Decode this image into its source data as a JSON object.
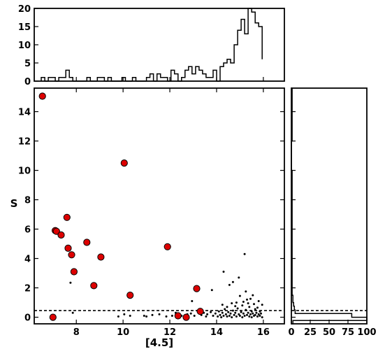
{
  "chart_data": [
    {
      "type": "histogram",
      "panel": "top",
      "orientation": "vertical",
      "bin_edges": [
        6.5,
        6.65,
        6.8,
        6.95,
        7.1,
        7.25,
        7.4,
        7.55,
        7.7,
        7.85,
        8.0,
        8.15,
        8.3,
        8.45,
        8.6,
        8.75,
        8.9,
        9.05,
        9.2,
        9.35,
        9.5,
        9.65,
        9.8,
        9.95,
        10.1,
        10.25,
        10.4,
        10.55,
        10.7,
        10.85,
        11.0,
        11.15,
        11.3,
        11.45,
        11.6,
        11.75,
        11.9,
        12.05,
        12.2,
        12.35,
        12.5,
        12.65,
        12.8,
        12.95,
        13.1,
        13.25,
        13.4,
        13.55,
        13.7,
        13.85,
        14.0,
        14.15,
        14.3,
        14.45,
        14.6,
        14.75,
        14.9,
        15.05,
        15.2,
        15.35,
        15.5,
        15.65,
        15.8,
        15.95
      ],
      "counts": [
        1,
        0,
        1,
        1,
        0,
        1,
        1,
        3,
        1,
        0,
        0,
        0,
        0,
        1,
        0,
        0,
        1,
        1,
        0,
        1,
        0,
        0,
        0,
        1,
        0,
        0,
        1,
        0,
        0,
        0,
        1,
        2,
        0,
        2,
        1,
        1,
        0,
        3,
        2,
        0,
        1,
        3,
        4,
        2,
        4,
        3,
        2,
        1,
        1,
        3,
        0,
        4,
        5,
        6,
        5,
        10,
        14,
        17,
        13,
        20,
        19,
        16,
        15,
        6
      ],
      "xlim": [
        6.2,
        16.9
      ],
      "ylim": [
        0,
        20
      ],
      "yticks": [
        "0",
        "5",
        "10",
        "15",
        "20"
      ]
    },
    {
      "type": "scatter",
      "panel": "main",
      "xlabel": "[4.5]",
      "ylabel": "S",
      "xlim": [
        6.2,
        16.9
      ],
      "ylim": [
        -0.45,
        15.6
      ],
      "xticks": [
        "8",
        "10",
        "12",
        "14",
        "16"
      ],
      "yticks": [
        "0",
        "2",
        "4",
        "6",
        "8",
        "10",
        "12",
        "14"
      ],
      "threshold_line": {
        "y": 0.45,
        "style": "dashed"
      },
      "highlighted_points": {
        "color": "#dd0000",
        "points": [
          [
            6.55,
            15.05
          ],
          [
            7.0,
            0.0
          ],
          [
            7.1,
            5.9
          ],
          [
            7.15,
            5.85
          ],
          [
            7.35,
            5.6
          ],
          [
            7.6,
            6.8
          ],
          [
            7.65,
            4.7
          ],
          [
            7.8,
            4.25
          ],
          [
            7.9,
            3.1
          ],
          [
            8.45,
            5.1
          ],
          [
            8.75,
            2.15
          ],
          [
            9.05,
            4.1
          ],
          [
            10.05,
            10.5
          ],
          [
            10.3,
            1.5
          ],
          [
            11.9,
            4.8
          ],
          [
            12.35,
            0.1
          ],
          [
            12.7,
            0.0
          ],
          [
            13.15,
            1.95
          ],
          [
            13.3,
            0.4
          ]
        ]
      },
      "field_points": {
        "color": "#000000",
        "points": [
          [
            7.75,
            2.35
          ],
          [
            7.85,
            0.3
          ],
          [
            9.8,
            0.05
          ],
          [
            10.05,
            0.2
          ],
          [
            10.3,
            0.1
          ],
          [
            10.9,
            0.1
          ],
          [
            11.0,
            0.05
          ],
          [
            11.25,
            0.15
          ],
          [
            11.55,
            0.2
          ],
          [
            11.85,
            0.05
          ],
          [
            12.1,
            0.1
          ],
          [
            12.25,
            0.3
          ],
          [
            12.5,
            0.1
          ],
          [
            12.75,
            0.2
          ],
          [
            12.9,
            0.25
          ],
          [
            12.95,
            1.1
          ],
          [
            13.05,
            0.1
          ],
          [
            13.2,
            0.4
          ],
          [
            13.35,
            0.15
          ],
          [
            13.45,
            0.3
          ],
          [
            13.55,
            0.05
          ],
          [
            13.6,
            0.2
          ],
          [
            13.75,
            0.35
          ],
          [
            13.8,
            1.85
          ],
          [
            13.85,
            0.1
          ],
          [
            13.95,
            0.25
          ],
          [
            14.05,
            0.05
          ],
          [
            14.1,
            0.4
          ],
          [
            14.15,
            0.15
          ],
          [
            14.2,
            0.0
          ],
          [
            14.25,
            0.3
          ],
          [
            14.3,
            3.1
          ],
          [
            14.3,
            0.1
          ],
          [
            14.35,
            0.55
          ],
          [
            14.4,
            0.2
          ],
          [
            14.45,
            0.05
          ],
          [
            14.5,
            0.35
          ],
          [
            14.55,
            2.2
          ],
          [
            14.55,
            0.1
          ],
          [
            14.6,
            0.25
          ],
          [
            14.65,
            0.0
          ],
          [
            14.7,
            0.45
          ],
          [
            14.7,
            2.4
          ],
          [
            14.75,
            0.15
          ],
          [
            14.8,
            0.3
          ],
          [
            14.85,
            0.05
          ],
          [
            14.9,
            0.6
          ],
          [
            14.95,
            0.2
          ],
          [
            14.95,
            2.7
          ],
          [
            15.0,
            0.1
          ],
          [
            15.05,
            0.35
          ],
          [
            15.1,
            0.0
          ],
          [
            15.1,
            0.8
          ],
          [
            15.15,
            0.25
          ],
          [
            15.2,
            4.3
          ],
          [
            15.2,
            0.1
          ],
          [
            15.25,
            0.5
          ],
          [
            15.3,
            0.15
          ],
          [
            15.3,
            1.2
          ],
          [
            15.35,
            0.3
          ],
          [
            15.4,
            0.05
          ],
          [
            15.4,
            0.7
          ],
          [
            15.45,
            0.2
          ],
          [
            15.5,
            0.4
          ],
          [
            15.5,
            0.0
          ],
          [
            15.55,
            0.25
          ],
          [
            15.6,
            0.1
          ],
          [
            15.65,
            0.55
          ],
          [
            15.65,
            0.15
          ],
          [
            15.7,
            0.3
          ],
          [
            15.75,
            0.05
          ],
          [
            15.8,
            0.2
          ],
          [
            15.85,
            0.4
          ],
          [
            15.85,
            0.1
          ],
          [
            15.9,
            0.25
          ],
          [
            15.95,
            0.85
          ],
          [
            15.95,
            0.0
          ],
          [
            14.45,
            0.7
          ],
          [
            14.85,
            1.0
          ],
          [
            15.0,
            1.45
          ],
          [
            15.25,
            1.75
          ],
          [
            15.45,
            1.25
          ],
          [
            15.6,
            0.9
          ],
          [
            15.75,
            0.65
          ],
          [
            14.25,
            0.85
          ],
          [
            14.65,
            0.95
          ],
          [
            15.15,
            1.05
          ],
          [
            15.55,
            1.5
          ],
          [
            15.8,
            1.1
          ],
          [
            14.8,
            0.75
          ],
          [
            15.35,
            0.95
          ]
        ]
      }
    },
    {
      "type": "histogram",
      "panel": "right",
      "orientation": "horizontal",
      "bin_edges": [
        -0.45,
        -0.22,
        0.0,
        0.25,
        0.5,
        0.75,
        1.0,
        1.25,
        1.5,
        1.75,
        2.0,
        2.5,
        3.0,
        4.0,
        5.0,
        7.0,
        10.0,
        12.0,
        15.6
      ],
      "counts": [
        2,
        100,
        80,
        5,
        4,
        3,
        2,
        2,
        1,
        1,
        1,
        1,
        1,
        1,
        1,
        1,
        0,
        1
      ],
      "xlim": [
        0,
        100
      ],
      "ylim": [
        -0.45,
        15.6
      ],
      "xticks": [
        "0",
        "25",
        "50",
        "75",
        "100"
      ],
      "threshold_line": {
        "y": 0.45,
        "style": "dashed"
      }
    }
  ]
}
